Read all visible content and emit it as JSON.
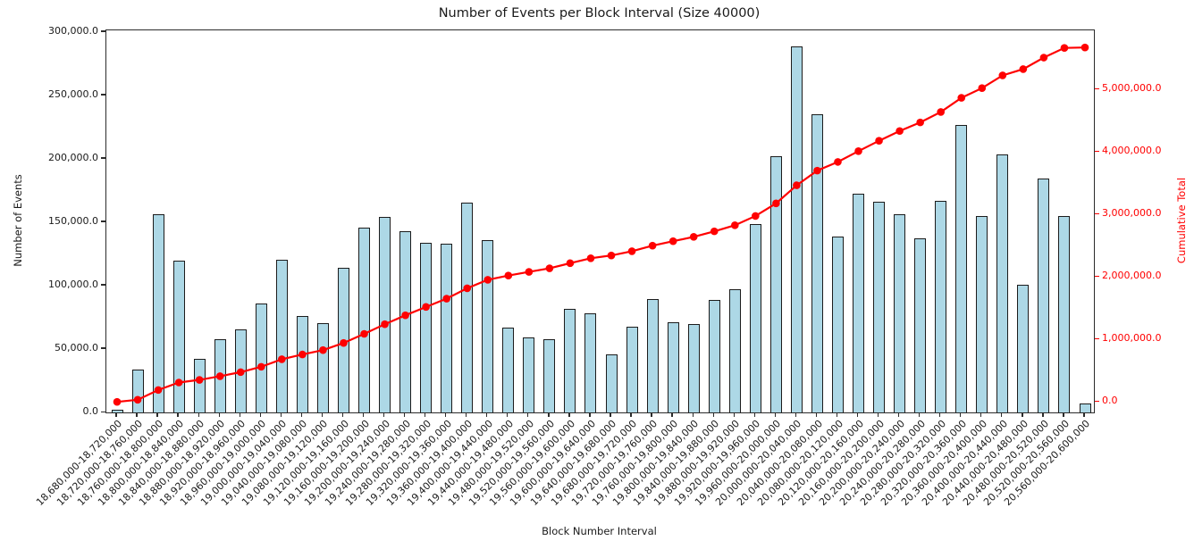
{
  "chart_data": {
    "type": "bar",
    "title": "Number of Events per Block Interval (Size 40000)",
    "xlabel": "Block Number Interval",
    "ylabel_left": "Number of Events",
    "ylabel_right": "Cumulative Total",
    "grid": false,
    "legend": "none",
    "bar_color": "#ADD8E6",
    "bar_edge_color": "#1c1c1c",
    "line_color": "#ff0000",
    "ylim_left": [
      0,
      301400
    ],
    "ylim_right": [
      -167000,
      5947000
    ],
    "left_axis_ticks": [
      0,
      50000,
      100000,
      150000,
      200000,
      250000,
      300000
    ],
    "left_axis_tick_labels": [
      "0.0",
      "50,000.0",
      "100,000.0",
      "150,000.0",
      "200,000.0",
      "250,000.0",
      "300,000.0"
    ],
    "right_axis_ticks": [
      0,
      1000000,
      2000000,
      3000000,
      4000000,
      5000000
    ],
    "right_axis_tick_labels": [
      "0.0",
      "1,000,000.0",
      "2,000,000.0",
      "3,000,000.0",
      "4,000,000.0",
      "5,000,000.0"
    ],
    "categories": [
      "18,680,000-18,720,000",
      "18,720,000-18,760,000",
      "18,760,000-18,800,000",
      "18,800,000-18,840,000",
      "18,840,000-18,880,000",
      "18,880,000-18,920,000",
      "18,920,000-18,960,000",
      "18,960,000-19,000,000",
      "19,000,000-19,040,000",
      "19,040,000-19,080,000",
      "19,080,000-19,120,000",
      "19,120,000-19,160,000",
      "19,160,000-19,200,000",
      "19,200,000-19,240,000",
      "19,240,000-19,280,000",
      "19,280,000-19,320,000",
      "19,320,000-19,360,000",
      "19,360,000-19,400,000",
      "19,400,000-19,440,000",
      "19,440,000-19,480,000",
      "19,480,000-19,520,000",
      "19,520,000-19,560,000",
      "19,560,000-19,600,000",
      "19,600,000-19,640,000",
      "19,640,000-19,680,000",
      "19,680,000-19,720,000",
      "19,720,000-19,760,000",
      "19,760,000-19,800,000",
      "19,800,000-19,840,000",
      "19,840,000-19,880,000",
      "19,880,000-19,920,000",
      "19,920,000-19,960,000",
      "19,960,000-20,000,000",
      "20,000,000-20,040,000",
      "20,040,000-20,080,000",
      "20,080,000-20,120,000",
      "20,120,000-20,160,000",
      "20,160,000-20,200,000",
      "20,200,000-20,240,000",
      "20,240,000-20,280,000",
      "20,280,000-20,320,000",
      "20,320,000-20,360,000",
      "20,360,000-20,400,000",
      "20,400,000-20,440,000",
      "20,440,000-20,480,000",
      "20,480,000-20,520,000",
      "20,520,000-20,560,000",
      "20,560,000-20,600,000"
    ],
    "series": [
      {
        "name": "Number of Events",
        "type": "bar",
        "values": [
          2000,
          33500,
          156500,
          119500,
          42500,
          58000,
          65500,
          86000,
          120500,
          76000,
          70500,
          114000,
          145500,
          154500,
          143000,
          133500,
          133000,
          165500,
          136000,
          67000,
          59000,
          58000,
          81500,
          78500,
          45500,
          67500,
          89500,
          71000,
          69500,
          88500,
          97000,
          148500,
          202000,
          289000,
          235000,
          139000,
          172500,
          166000,
          156500,
          137500,
          167000,
          226500,
          155000,
          203500,
          100500,
          184500,
          155000,
          7000
        ]
      },
      {
        "name": "Cumulative Total",
        "type": "line",
        "marker": "o",
        "values": [
          2000,
          35500,
          192000,
          311500,
          354000,
          412000,
          477500,
          563500,
          684000,
          760000,
          830500,
          944500,
          1090000,
          1244500,
          1387500,
          1521000,
          1654000,
          1819500,
          1955500,
          2022500,
          2081500,
          2139500,
          2221000,
          2299500,
          2345000,
          2412500,
          2502000,
          2573000,
          2642500,
          2731000,
          2828000,
          2976500,
          3178500,
          3467500,
          3702500,
          3841500,
          4014000,
          4180000,
          4336500,
          4474000,
          4641000,
          4867500,
          5022500,
          5226000,
          5326500,
          5511000,
          5666000,
          5673000
        ]
      }
    ]
  }
}
